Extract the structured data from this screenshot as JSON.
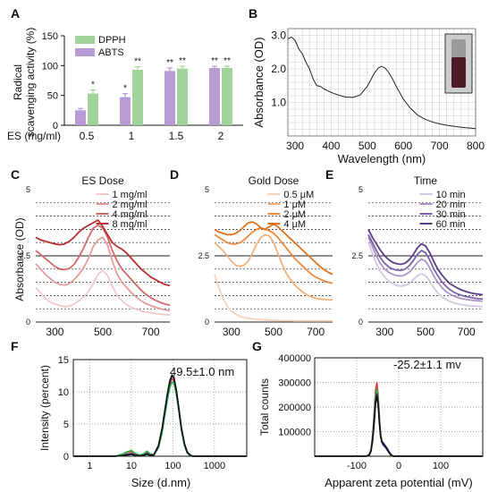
{
  "colors": {
    "dpph": "#9fd39a",
    "abts": "#b79bd3",
    "absorbance": "#222222",
    "es": [
      "#f2c9c9",
      "#e69b9b",
      "#d2676a",
      "#b92e33"
    ],
    "gold": [
      "#f6d3b8",
      "#f3b07a",
      "#ee8a3c",
      "#e0701c"
    ],
    "time": [
      "#d4c8e2",
      "#a894c6",
      "#7e61a8",
      "#5a3d86"
    ],
    "dls": [
      "#e63b3b",
      "#27b548",
      "#1f2d8a",
      "#111111"
    ],
    "zeta": [
      "#e63b3b",
      "#27b548",
      "#1f2d8a",
      "#111111"
    ]
  },
  "chart_data": [
    {
      "panel": "A",
      "type": "bar",
      "ylabel": [
        "Radical",
        "scavenging activity (%)"
      ],
      "xlabel": "ES (mg/ml)",
      "categories": [
        "0.5",
        "1",
        "1.5",
        "2"
      ],
      "ylim": [
        0,
        150
      ],
      "yticks": [
        "0",
        "50",
        "100",
        "150"
      ],
      "legend": [
        "DPPH",
        "ABTS"
      ],
      "series": [
        {
          "name": "ABTS",
          "values": [
            25,
            47,
            91,
            96
          ],
          "errors": [
            3,
            6,
            5,
            3
          ],
          "sig": [
            "",
            "*",
            "**",
            "**"
          ]
        },
        {
          "name": "DPPH",
          "values": [
            53,
            93,
            95,
            96
          ],
          "errors": [
            6,
            5,
            4,
            3
          ],
          "sig": [
            "*",
            "**",
            "**",
            "**"
          ]
        }
      ]
    },
    {
      "panel": "B",
      "type": "line",
      "ylabel": "Absorbance (OD)",
      "xlabel": "Wavelength (nm)",
      "xlim": [
        280,
        800
      ],
      "ylim": [
        0,
        3.2
      ],
      "xticks": [
        "300",
        "400",
        "500",
        "600",
        "700",
        "800"
      ],
      "yticks": [
        "1.0",
        "2.0",
        "3.0"
      ],
      "x": [
        280,
        290,
        300,
        310,
        320,
        330,
        340,
        350,
        360,
        370,
        380,
        400,
        420,
        440,
        460,
        480,
        500,
        510,
        520,
        530,
        540,
        550,
        560,
        570,
        580,
        600,
        620,
        640,
        660,
        680,
        700,
        720,
        740,
        760,
        780,
        800
      ],
      "y": [
        2.9,
        2.95,
        2.85,
        2.6,
        2.45,
        2.2,
        2.0,
        1.7,
        1.5,
        1.48,
        1.4,
        1.3,
        1.22,
        1.16,
        1.15,
        1.22,
        1.48,
        1.68,
        1.88,
        2.02,
        2.08,
        2.02,
        1.88,
        1.7,
        1.48,
        1.1,
        0.82,
        0.62,
        0.5,
        0.42,
        0.36,
        0.32,
        0.29,
        0.26,
        0.24,
        0.22
      ]
    },
    {
      "panel": "C",
      "type": "line",
      "title": "ES Dose",
      "ylabel": "Absorbance (OD)",
      "xlim": [
        220,
        780
      ],
      "ylim": [
        0,
        5
      ],
      "xticks": [
        "300",
        "500",
        "700"
      ],
      "yticks": [
        "0",
        "2.5",
        "5"
      ],
      "legend": [
        "1 mg/ml",
        "2 mg/ml",
        "4 mg/ml",
        "8 mg/ml"
      ],
      "x": [
        220,
        240,
        260,
        280,
        300,
        320,
        340,
        360,
        380,
        400,
        420,
        440,
        460,
        480,
        500,
        520,
        540,
        560,
        580,
        600,
        620,
        640,
        660,
        680,
        700,
        720,
        740,
        760,
        780
      ],
      "series": [
        {
          "name": "1 mg/ml",
          "values": [
            1.3,
            1.1,
            0.9,
            0.75,
            0.68,
            0.62,
            0.58,
            0.6,
            0.68,
            0.8,
            0.95,
            1.15,
            1.45,
            1.8,
            1.95,
            1.75,
            1.35,
            1.0,
            0.8,
            0.65,
            0.55,
            0.48,
            0.42,
            0.38,
            0.35,
            0.32,
            0.3,
            0.28,
            0.27
          ]
        },
        {
          "name": "2 mg/ml",
          "values": [
            2.2,
            2.0,
            1.8,
            1.65,
            1.5,
            1.42,
            1.4,
            1.45,
            1.6,
            1.8,
            2.05,
            2.4,
            2.85,
            3.1,
            3.2,
            2.9,
            2.3,
            1.8,
            1.5,
            1.3,
            1.1,
            0.95,
            0.8,
            0.7,
            0.62,
            0.56,
            0.5,
            0.46,
            0.43
          ]
        },
        {
          "name": "4 mg/ml",
          "values": [
            2.7,
            2.55,
            2.4,
            2.25,
            2.1,
            2.0,
            1.98,
            2.02,
            2.18,
            2.45,
            2.8,
            3.2,
            3.55,
            3.65,
            3.55,
            3.2,
            2.7,
            2.3,
            2.0,
            1.8,
            1.6,
            1.4,
            1.2,
            1.05,
            0.92,
            0.82,
            0.74,
            0.68,
            0.64
          ]
        },
        {
          "name": "8 mg/ml",
          "values": [
            3.2,
            3.1,
            3.05,
            3.0,
            2.95,
            2.92,
            2.95,
            3.05,
            3.2,
            3.4,
            3.55,
            3.65,
            3.75,
            3.85,
            3.6,
            3.3,
            3.0,
            2.85,
            2.75,
            2.6,
            2.4,
            2.2,
            2.0,
            1.85,
            1.7,
            1.6,
            1.5,
            1.42,
            1.38
          ]
        }
      ]
    },
    {
      "panel": "D",
      "type": "line",
      "title": "Gold Dose",
      "xlim": [
        220,
        780
      ],
      "ylim": [
        0,
        5
      ],
      "xticks": [
        "300",
        "500",
        "700"
      ],
      "yticks": [
        "0",
        "2.5",
        "5"
      ],
      "legend": [
        "0.5 μM",
        "1 μM",
        "2 μM",
        "4 μM"
      ],
      "x": [
        220,
        240,
        260,
        280,
        300,
        320,
        340,
        360,
        380,
        400,
        420,
        440,
        460,
        480,
        500,
        520,
        540,
        560,
        580,
        600,
        620,
        640,
        660,
        680,
        700,
        720,
        740,
        760,
        780
      ],
      "series": [
        {
          "name": "0.5 μM",
          "values": [
            1.8,
            1.3,
            0.9,
            0.6,
            0.42,
            0.3,
            0.22,
            0.17,
            0.14,
            0.12,
            0.1,
            0.09,
            0.08,
            0.07,
            0.06,
            0.06,
            0.05,
            0.05,
            0.05,
            0.04,
            0.04,
            0.04,
            0.04,
            0.04,
            0.04,
            0.04,
            0.04,
            0.04,
            0.04
          ]
        },
        {
          "name": "1 μM",
          "values": [
            3.0,
            2.85,
            2.7,
            2.5,
            2.3,
            2.15,
            2.1,
            2.15,
            2.3,
            2.6,
            2.95,
            3.2,
            3.3,
            3.25,
            3.0,
            2.6,
            2.2,
            1.85,
            1.6,
            1.4,
            1.25,
            1.12,
            1.02,
            0.95,
            0.9,
            0.87,
            0.85,
            0.84,
            0.83
          ]
        },
        {
          "name": "2 μM",
          "values": [
            3.3,
            3.2,
            3.1,
            3.0,
            2.95,
            2.95,
            3.0,
            3.1,
            3.25,
            3.4,
            3.5,
            3.55,
            3.5,
            3.45,
            3.35,
            3.2,
            3.0,
            2.8,
            2.6,
            2.4,
            2.25,
            2.1,
            1.95,
            1.8,
            1.7,
            1.62,
            1.55,
            1.5,
            1.46
          ]
        },
        {
          "name": "4 μM",
          "values": [
            3.5,
            3.4,
            3.35,
            3.3,
            3.3,
            3.35,
            3.45,
            3.6,
            3.75,
            3.78,
            3.7,
            3.55,
            3.5,
            3.6,
            3.7,
            3.6,
            3.45,
            3.3,
            3.15,
            3.0,
            2.85,
            2.7,
            2.55,
            2.4,
            2.25,
            2.1,
            1.98,
            1.88,
            1.8
          ]
        }
      ]
    },
    {
      "panel": "E",
      "type": "line",
      "title": "Time",
      "xlim": [
        220,
        780
      ],
      "ylim": [
        0,
        5
      ],
      "xticks": [
        "300",
        "500",
        "700"
      ],
      "yticks": [
        "0",
        "2.5",
        "5"
      ],
      "legend": [
        "10 min",
        "20 min",
        "30 min",
        "60 min"
      ],
      "x": [
        220,
        240,
        260,
        280,
        300,
        320,
        340,
        360,
        380,
        400,
        420,
        440,
        460,
        480,
        500,
        520,
        540,
        560,
        580,
        600,
        620,
        640,
        660,
        680,
        700,
        720,
        740,
        760,
        780
      ],
      "series": [
        {
          "name": "10 min",
          "values": [
            3.0,
            2.6,
            2.2,
            1.9,
            1.7,
            1.55,
            1.45,
            1.38,
            1.35,
            1.38,
            1.45,
            1.6,
            1.75,
            1.82,
            1.75,
            1.55,
            1.3,
            1.1,
            0.95,
            0.85,
            0.78,
            0.72,
            0.68,
            0.65,
            0.63,
            0.61,
            0.6,
            0.59,
            0.58
          ]
        },
        {
          "name": "20 min",
          "values": [
            3.2,
            2.85,
            2.5,
            2.2,
            2.0,
            1.88,
            1.8,
            1.75,
            1.74,
            1.78,
            1.88,
            2.05,
            2.25,
            2.38,
            2.3,
            2.05,
            1.75,
            1.5,
            1.3,
            1.15,
            1.05,
            0.98,
            0.92,
            0.88,
            0.85,
            0.83,
            0.81,
            0.8,
            0.79
          ]
        },
        {
          "name": "30 min",
          "values": [
            3.3,
            3.0,
            2.7,
            2.42,
            2.22,
            2.08,
            2.0,
            1.96,
            1.95,
            2.0,
            2.12,
            2.32,
            2.55,
            2.7,
            2.62,
            2.35,
            2.02,
            1.75,
            1.52,
            1.35,
            1.22,
            1.12,
            1.05,
            1.0,
            0.96,
            0.93,
            0.9,
            0.88,
            0.87
          ]
        },
        {
          "name": "60 min",
          "values": [
            3.5,
            3.2,
            2.95,
            2.7,
            2.5,
            2.35,
            2.25,
            2.2,
            2.18,
            2.22,
            2.35,
            2.55,
            2.8,
            2.95,
            2.88,
            2.62,
            2.3,
            2.0,
            1.78,
            1.6,
            1.45,
            1.35,
            1.27,
            1.2,
            1.15,
            1.1,
            1.07,
            1.05,
            1.03
          ]
        }
      ]
    },
    {
      "panel": "F",
      "type": "line",
      "ylabel": "Intensity (percent)",
      "xlabel": "Size (d.nm)",
      "annotation": "49.5±1.0 nm",
      "xscale": "log",
      "xlim": [
        0.4,
        6000
      ],
      "ylim": [
        0,
        15
      ],
      "xticks": [
        "1",
        "10",
        "100",
        "1000"
      ],
      "yticks": [
        "0",
        "5",
        "10",
        "15"
      ],
      "x": [
        0.4,
        4,
        6,
        8,
        10,
        12,
        16,
        20,
        24,
        28,
        35,
        45,
        55,
        65,
        75,
        85,
        95,
        105,
        120,
        140,
        160,
        190,
        220,
        260,
        300,
        6000
      ],
      "series": [
        {
          "values": [
            0,
            0,
            0.2,
            0.6,
            0.7,
            0.4,
            0.1,
            0.3,
            0.6,
            0.3,
            0.2,
            1.5,
            4.0,
            7.0,
            9.5,
            11.2,
            12.0,
            11.8,
            10.0,
            7.0,
            4.2,
            1.8,
            0.6,
            0.15,
            0,
            0
          ]
        },
        {
          "values": [
            0,
            0,
            0.3,
            0.7,
            0.9,
            0.5,
            0.15,
            0.4,
            0.8,
            0.4,
            0.2,
            1.3,
            3.6,
            6.6,
            9.0,
            10.7,
            11.5,
            11.4,
            9.7,
            6.8,
            4.0,
            1.7,
            0.5,
            0.1,
            0,
            0
          ]
        },
        {
          "values": [
            0,
            0,
            0.1,
            0.3,
            0.4,
            0.2,
            0.05,
            0.2,
            0.4,
            0.2,
            0.2,
            1.6,
            4.2,
            7.3,
            9.9,
            11.6,
            12.4,
            12.2,
            10.3,
            7.2,
            4.3,
            1.9,
            0.6,
            0.15,
            0,
            0
          ]
        },
        {
          "values": [
            0,
            0,
            0.1,
            0.2,
            0.3,
            0.15,
            0.05,
            0.15,
            0.3,
            0.15,
            0.25,
            1.7,
            4.3,
            7.4,
            10.0,
            11.8,
            12.6,
            12.3,
            10.4,
            7.3,
            4.4,
            2.0,
            0.7,
            0.2,
            0,
            0
          ]
        }
      ]
    },
    {
      "panel": "G",
      "type": "line",
      "ylabel": "Total counts",
      "xlabel": "Apparent zeta potential (mV)",
      "annotation": "-25.2±1.1 mv",
      "xlim": [
        -200,
        200
      ],
      "ylim": [
        0,
        400000
      ],
      "xticks": [
        "-100",
        "0",
        "100"
      ],
      "yticks": [
        "100000",
        "200000",
        "300000",
        "400000"
      ],
      "x": [
        -200,
        -80,
        -75,
        -70,
        -66,
        -62,
        -58,
        -55,
        -52,
        -49,
        -46,
        -43,
        -40,
        -37,
        -34,
        -31,
        -28,
        -25,
        -22,
        -19,
        -16,
        -13,
        200
      ],
      "series": [
        {
          "values": [
            0,
            0,
            2000,
            8000,
            30000,
            90000,
            190000,
            270000,
            300000,
            250000,
            160000,
            90000,
            60000,
            48000,
            42000,
            36000,
            28000,
            20000,
            12000,
            6000,
            2000,
            0,
            0
          ]
        },
        {
          "values": [
            0,
            0,
            2000,
            7000,
            26000,
            80000,
            170000,
            245000,
            275000,
            230000,
            150000,
            85000,
            58000,
            50000,
            44000,
            38000,
            30000,
            22000,
            13000,
            6000,
            2000,
            0,
            0
          ]
        },
        {
          "values": [
            0,
            0,
            1000,
            6000,
            22000,
            70000,
            150000,
            225000,
            255000,
            215000,
            140000,
            80000,
            55000,
            46000,
            40000,
            34000,
            27000,
            19000,
            11000,
            5000,
            1500,
            0,
            0
          ]
        },
        {
          "values": [
            0,
            0,
            1000,
            5000,
            20000,
            65000,
            140000,
            215000,
            245000,
            205000,
            135000,
            78000,
            60000,
            55000,
            47000,
            40000,
            33000,
            24000,
            15000,
            8000,
            3000,
            0,
            0
          ]
        }
      ]
    }
  ],
  "panels": {
    "labels": [
      "A",
      "B",
      "C",
      "D",
      "E",
      "F",
      "G"
    ]
  }
}
